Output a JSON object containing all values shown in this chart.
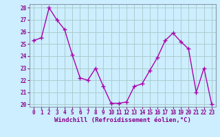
{
  "x": [
    0,
    1,
    2,
    3,
    4,
    5,
    6,
    7,
    8,
    9,
    10,
    11,
    12,
    13,
    14,
    15,
    16,
    17,
    18,
    19,
    20,
    21,
    22,
    23
  ],
  "y": [
    25.3,
    25.5,
    28.0,
    27.0,
    26.2,
    24.1,
    22.2,
    22.0,
    23.0,
    21.5,
    20.1,
    20.1,
    20.2,
    21.5,
    21.7,
    22.8,
    23.9,
    25.3,
    25.9,
    25.2,
    24.6,
    21.0,
    23.0,
    20.0
  ],
  "line_color": "#aa00aa",
  "marker": "+",
  "marker_size": 4,
  "marker_linewidth": 1.0,
  "line_width": 1.0,
  "ylim": [
    19.8,
    28.3
  ],
  "yticks": [
    20,
    21,
    22,
    23,
    24,
    25,
    26,
    27,
    28
  ],
  "xlim": [
    -0.5,
    23.5
  ],
  "xlabel": "Windchill (Refroidissement éolien,°C)",
  "bg_color": "#cceeff",
  "grid_color": "#aacccc",
  "spine_color": "#8899aa",
  "label_color": "#880088",
  "tick_color": "#880088",
  "tick_fontsize": 5.5,
  "xlabel_fontsize": 6.5
}
